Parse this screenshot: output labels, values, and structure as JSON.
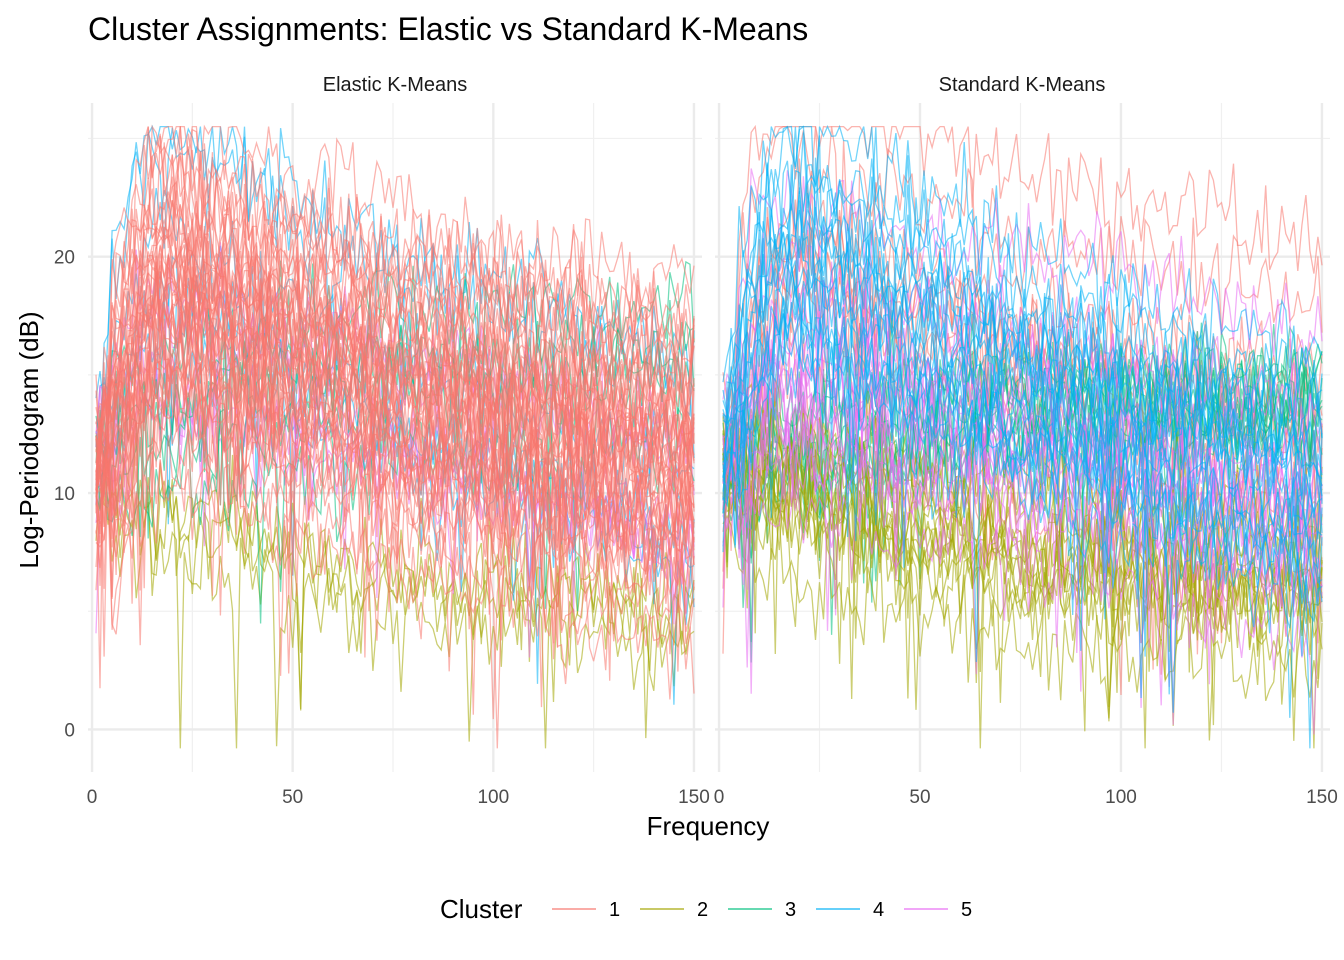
{
  "chart_data": {
    "type": "line",
    "title": "Cluster Assignments: Elastic vs Standard K-Means",
    "xlabel": "Frequency",
    "ylabel": "Log-Periodogram (dB)",
    "xlim": [
      -1,
      152
    ],
    "ylim": [
      -1.8,
      26.5
    ],
    "x_ticks": [
      0,
      50,
      100,
      150
    ],
    "y_ticks": [
      0,
      10,
      20
    ],
    "grid": true,
    "legend": {
      "title": "Cluster",
      "position": "bottom",
      "entries": [
        "1",
        "2",
        "3",
        "4",
        "5"
      ]
    },
    "cluster_colors": {
      "1": "#F8766D",
      "2": "#A3A500",
      "3": "#00BF7D",
      "4": "#00B0F6",
      "5": "#E76BF3"
    },
    "panels": [
      {
        "label": "Elastic K-Means",
        "series_counts": {
          "1": 48,
          "2": 4,
          "3": 5,
          "4": 6,
          "5": 5
        }
      },
      {
        "label": "Standard K-Means",
        "series_counts": {
          "1": 12,
          "2": 14,
          "3": 10,
          "4": 18,
          "5": 16
        }
      }
    ],
    "cluster_profiles": {
      "1": {
        "start": 11,
        "peak": 19,
        "peak_x": 20,
        "mid": 15,
        "end": 12,
        "spread": 3.5
      },
      "2": {
        "start": 11,
        "peak": 10,
        "peak_x": 8,
        "mid": 6.5,
        "end": 5.5,
        "spread": 1.6
      },
      "3": {
        "start": 11,
        "peak": 12,
        "peak_x": 15,
        "mid": 14,
        "end": 14.5,
        "spread": 2.2
      },
      "4": {
        "start": 12,
        "peak": 20,
        "peak_x": 20,
        "mid": 14.5,
        "end": 10,
        "spread": 2.8
      },
      "5": {
        "start": 11,
        "peak": 15,
        "peak_x": 15,
        "mid": 13,
        "end": 9.5,
        "spread": 2.0
      }
    }
  }
}
